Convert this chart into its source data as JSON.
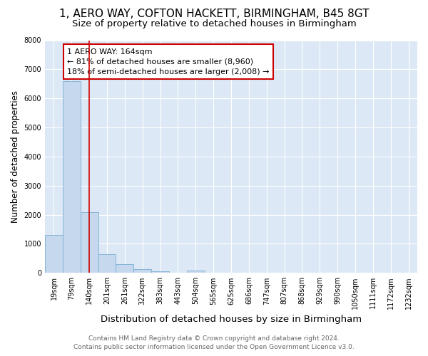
{
  "title": "1, AERO WAY, COFTON HACKETT, BIRMINGHAM, B45 8GT",
  "subtitle": "Size of property relative to detached houses in Birmingham",
  "xlabel": "Distribution of detached houses by size in Birmingham",
  "ylabel": "Number of detached properties",
  "bar_color": "#c5d8ed",
  "bar_edge_color": "#7badd1",
  "vline_color": "#cc0000",
  "vline_x_index": 2,
  "annotation_text": "1 AERO WAY: 164sqm\n← 81% of detached houses are smaller (8,960)\n18% of semi-detached houses are larger (2,008) →",
  "annotation_box_color": "#cc0000",
  "categories": [
    "19sqm",
    "79sqm",
    "140sqm",
    "201sqm",
    "261sqm",
    "322sqm",
    "383sqm",
    "443sqm",
    "504sqm",
    "565sqm",
    "625sqm",
    "686sqm",
    "747sqm",
    "807sqm",
    "868sqm",
    "929sqm",
    "990sqm",
    "1050sqm",
    "1111sqm",
    "1172sqm",
    "1232sqm"
  ],
  "values": [
    1300,
    6600,
    2100,
    640,
    300,
    120,
    60,
    0,
    80,
    0,
    0,
    0,
    0,
    0,
    0,
    0,
    0,
    0,
    0,
    0,
    0
  ],
  "ylim": [
    0,
    8000
  ],
  "yticks": [
    0,
    1000,
    2000,
    3000,
    4000,
    5000,
    6000,
    7000,
    8000
  ],
  "background_color": "#ffffff",
  "plot_bg_color": "#dce8f5",
  "grid_color": "#ffffff",
  "footer": "Contains HM Land Registry data © Crown copyright and database right 2024.\nContains public sector information licensed under the Open Government Licence v3.0.",
  "title_fontsize": 11,
  "subtitle_fontsize": 9.5,
  "xlabel_fontsize": 9.5,
  "ylabel_fontsize": 8.5,
  "tick_fontsize": 7,
  "footer_fontsize": 6.5,
  "annotation_fontsize": 8
}
